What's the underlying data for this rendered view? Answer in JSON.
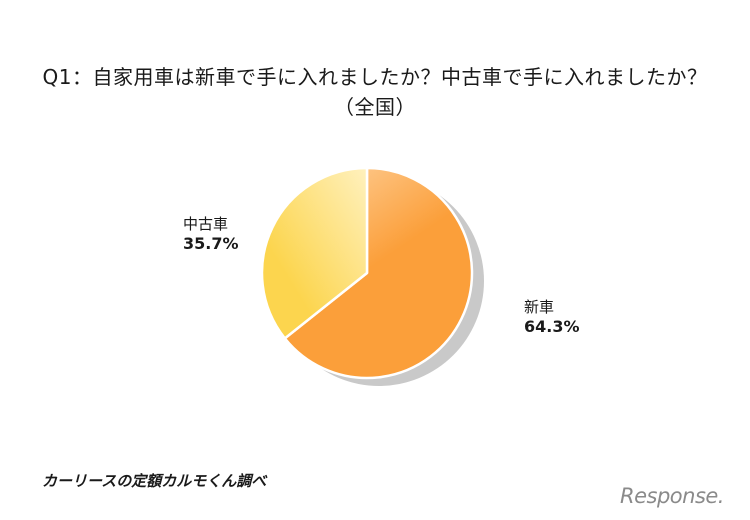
{
  "title": {
    "line1": "Q1：自家用車は新車で手に入れましたか？中古車で手に入れましたか？",
    "line2": "（全国）"
  },
  "chart_data": {
    "type": "pie",
    "slices": [
      {
        "label": "新車",
        "value": 64.3,
        "value_label": "64.3%",
        "color": "#fb9f3a",
        "color_light": "#ffd6a6"
      },
      {
        "label": "中古車",
        "value": 35.7,
        "value_label": "35.7%",
        "color": "#fcd54e",
        "color_light": "#fff1be"
      }
    ],
    "shadow_color": "#c9c9c9"
  },
  "source": "カーリースの定額カルモくん調べ",
  "watermark": "Response."
}
